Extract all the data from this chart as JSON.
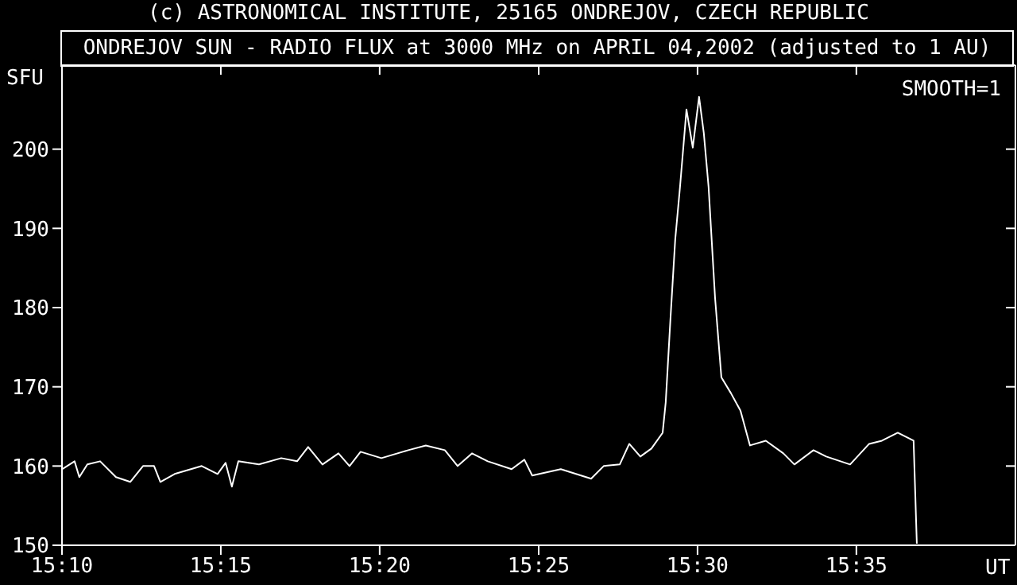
{
  "chart_data": {
    "type": "line",
    "title": "(c) ASTRONOMICAL INSTITUTE, 25165 ONDREJOV, CZECH REPUBLIC",
    "subtitle": "ONDREJOV SUN - RADIO FLUX at 3000 MHz on APRIL 04,2002 (adjusted to 1 AU)",
    "ylabel": "SFU",
    "xlabel": "UT",
    "annotations": [
      "SMOOTH=1"
    ],
    "xlim": [
      15.1667,
      15.6667
    ],
    "xticks": [
      {
        "value": 15.1667,
        "label": "15:10"
      },
      {
        "value": 15.25,
        "label": "15:15"
      },
      {
        "value": 15.3333,
        "label": "15:20"
      },
      {
        "value": 15.4167,
        "label": "15:25"
      },
      {
        "value": 15.5,
        "label": "15:30"
      },
      {
        "value": 15.5833,
        "label": "15:35"
      }
    ],
    "ylim": [
      150,
      210.6
    ],
    "yticks": [
      150,
      160,
      170,
      180,
      190,
      200
    ],
    "grid": false,
    "legend": false,
    "marker": "none",
    "line_style": "solid",
    "series": [
      {
        "color": "#ffffff",
        "x": [
          15.1667,
          15.1733,
          15.1758,
          15.18,
          15.1867,
          15.195,
          15.2025,
          15.2092,
          15.215,
          15.2183,
          15.2258,
          15.24,
          15.2483,
          15.2525,
          15.2558,
          15.2592,
          15.27,
          15.2817,
          15.29,
          15.2958,
          15.3033,
          15.3117,
          15.3175,
          15.3233,
          15.3342,
          15.3483,
          15.3575,
          15.3675,
          15.3742,
          15.3817,
          15.39,
          15.4025,
          15.4092,
          15.4133,
          15.4283,
          15.4442,
          15.4508,
          15.4592,
          15.4642,
          15.47,
          15.4758,
          15.4817,
          15.4833,
          15.4858,
          15.4883,
          15.4908,
          15.4942,
          15.4975,
          15.5008,
          15.5033,
          15.5058,
          15.5092,
          15.5125,
          15.5175,
          15.5225,
          15.5275,
          15.5358,
          15.545,
          15.5508,
          15.5608,
          15.5675,
          15.58,
          15.59,
          15.5967,
          15.605,
          15.6133,
          15.615
        ],
        "values": [
          159.6,
          160.6,
          158.6,
          160.2,
          160.6,
          158.6,
          158,
          160,
          160,
          158,
          159,
          160,
          159,
          160.4,
          157.4,
          160.6,
          160.2,
          161,
          160.6,
          162.4,
          160.2,
          161.6,
          160,
          161.8,
          161,
          162,
          162.6,
          162,
          160,
          161.6,
          160.6,
          159.6,
          160.8,
          158.8,
          159.6,
          158.4,
          160,
          160.2,
          162.8,
          161.2,
          162.2,
          164.2,
          168,
          178.6,
          188.6,
          195.2,
          205,
          200.2,
          206.6,
          202,
          195.2,
          181.2,
          171.2,
          169.2,
          167,
          162.6,
          163.2,
          161.6,
          160.2,
          162,
          161.2,
          160.2,
          162.8,
          163.2,
          164.2,
          163.2,
          150.2
        ]
      }
    ]
  }
}
